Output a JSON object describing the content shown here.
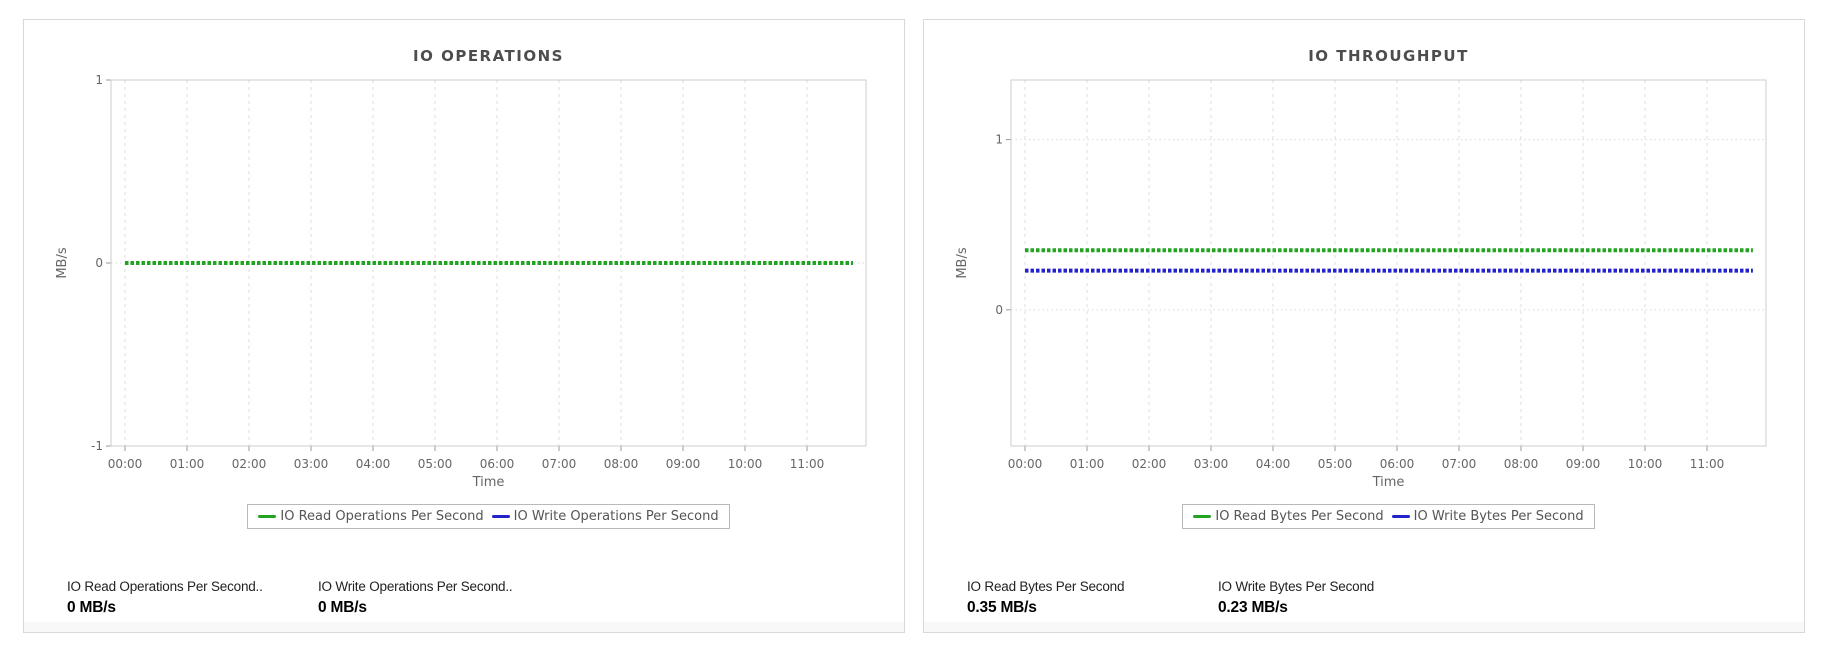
{
  "chart_data": [
    {
      "type": "line",
      "title": "IO OPERATIONS",
      "xlabel": "Time",
      "ylabel": "MB/s",
      "x_ticks": [
        "00:00",
        "01:00",
        "02:00",
        "03:00",
        "04:00",
        "05:00",
        "06:00",
        "07:00",
        "08:00",
        "09:00",
        "10:00",
        "11:00"
      ],
      "x_range_hours": [
        0,
        11.74
      ],
      "ylim": [
        -1,
        1
      ],
      "yticks": [
        -1,
        0,
        1
      ],
      "grid": "dashed-vertical-dotted-horizontal",
      "legend_position": "bottom",
      "series": [
        {
          "name": "IO Read Operations Per Second",
          "color": "#22a422",
          "value": 0
        },
        {
          "name": "IO Write Operations Per Second",
          "color": "#2323cc",
          "value": 0
        }
      ],
      "stats": [
        {
          "label": "IO Read Operations Per Second..",
          "value": "0 MB/s"
        },
        {
          "label": "IO Write Operations Per Second..",
          "value": "0 MB/s"
        }
      ]
    },
    {
      "type": "line",
      "title": "IO THROUGHPUT",
      "xlabel": "Time",
      "ylabel": "MB/s",
      "x_ticks": [
        "00:00",
        "01:00",
        "02:00",
        "03:00",
        "04:00",
        "05:00",
        "06:00",
        "07:00",
        "08:00",
        "09:00",
        "10:00",
        "11:00"
      ],
      "x_range_hours": [
        0,
        11.74
      ],
      "ylim": [
        -0.8,
        1.35
      ],
      "yticks": [
        0,
        1
      ],
      "grid": "dashed-vertical-dotted-horizontal",
      "legend_position": "bottom",
      "series": [
        {
          "name": "IO Read Bytes Per Second",
          "color": "#22a422",
          "value": 0.35
        },
        {
          "name": "IO Write Bytes Per Second",
          "color": "#2323cc",
          "value": 0.23
        }
      ],
      "stats": [
        {
          "label": "IO Read Bytes Per Second",
          "value": "0.35 MB/s"
        },
        {
          "label": "IO Write Bytes Per Second",
          "value": "0.23 MB/s"
        }
      ]
    }
  ]
}
